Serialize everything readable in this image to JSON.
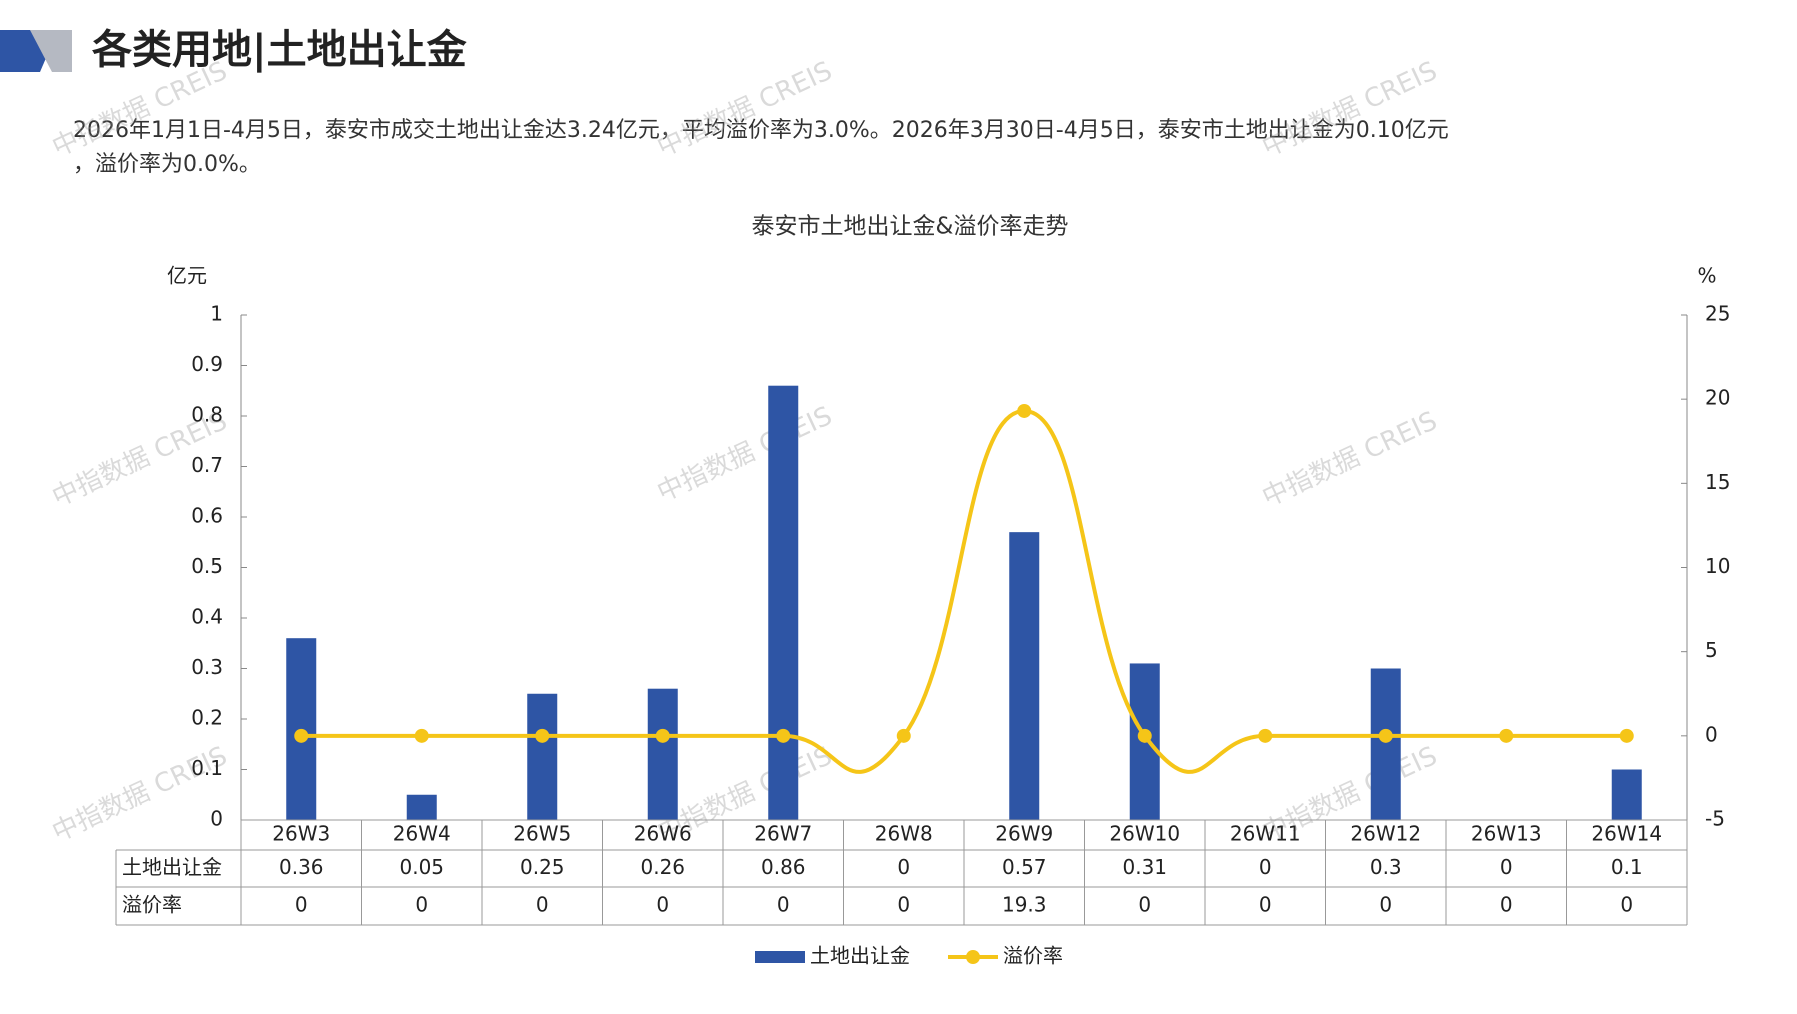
{
  "header": {
    "title": "各类用地|土地出让金",
    "summary": [
      "2026年1月1日-4月5日，泰安市成交土地出让金达3.24亿元，平均溢价率为3.0%。2026年3月30日-4月5日，泰安市土地出让金为0.10亿元",
      "，溢价率为0.0%。"
    ]
  },
  "watermark": "中指数据 CREIS",
  "chart_data": {
    "type": "bar_line",
    "title": "泰安市土地出让金&溢价率走势",
    "y_label": "亿元",
    "y2_label": "%",
    "categories": [
      "26W3",
      "26W4",
      "26W5",
      "26W6",
      "26W7",
      "26W8",
      "26W9",
      "26W10",
      "26W11",
      "26W12",
      "26W13",
      "26W14"
    ],
    "series": [
      {
        "name": "土地出让金",
        "type": "bar",
        "color": "#2e55a5",
        "values": [
          0.36,
          0.05,
          0.25,
          0.26,
          0.86,
          0,
          0.57,
          0.31,
          0,
          0.3,
          0,
          0.1
        ]
      },
      {
        "name": "溢价率",
        "type": "line",
        "axis": "y2",
        "color": "#f5c518",
        "values": [
          0,
          0,
          0,
          0,
          0,
          0,
          19.3,
          0,
          0,
          0,
          0,
          0
        ]
      }
    ],
    "ylim": [
      0,
      1
    ],
    "yticks": [
      0,
      0.1,
      0.2,
      0.3,
      0.4,
      0.5,
      0.6,
      0.7,
      0.8,
      0.9,
      1
    ],
    "y2lim": [
      -5,
      25
    ],
    "y2ticks": [
      -5,
      0,
      5,
      10,
      15,
      20,
      25
    ],
    "legend": "bottom",
    "data_table": true
  }
}
